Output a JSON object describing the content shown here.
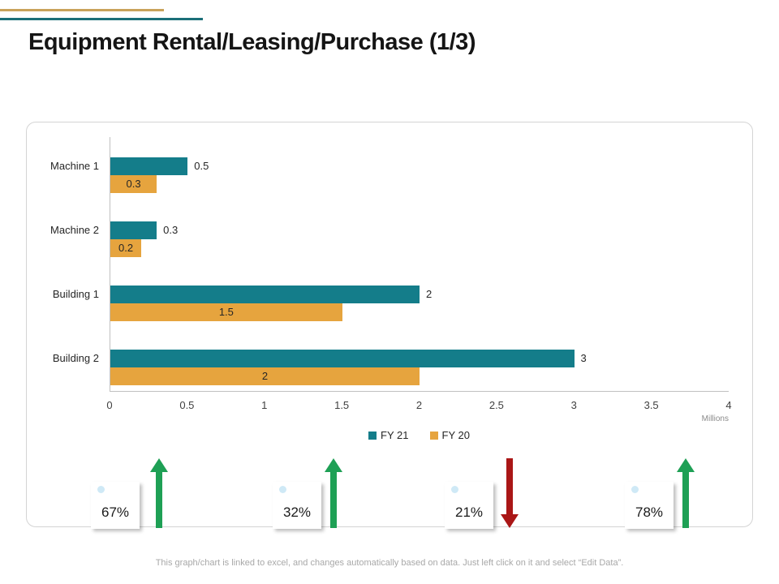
{
  "page": {
    "title": "Equipment Rental/Leasing/Purchase (1/3)",
    "footer": "This graph/chart is linked to excel, and changes automatically based on data. Just left click on it and select “Edit Data”."
  },
  "chart_data": {
    "type": "bar",
    "orientation": "horizontal",
    "title": "",
    "categories": [
      "Machine 1",
      "Machine 2",
      "Building 1",
      "Building 2"
    ],
    "series": [
      {
        "name": "FY 21",
        "color": "#147d8a",
        "values": [
          0.5,
          0.3,
          2,
          3
        ]
      },
      {
        "name": "FY 20",
        "color": "#e6a43e",
        "values": [
          0.3,
          0.2,
          1.5,
          2
        ]
      }
    ],
    "xlim": [
      0,
      4
    ],
    "xticks": [
      0,
      0.5,
      1,
      1.5,
      2,
      2.5,
      3,
      3.5,
      4
    ],
    "units_label": "Millions",
    "legend_position": "bottom-center",
    "grid": false,
    "value_labels": {
      "FY 21": "outside-right",
      "FY 20": "inside-center"
    }
  },
  "stats": [
    {
      "value": "67%",
      "direction": "up"
    },
    {
      "value": "32%",
      "direction": "up"
    },
    {
      "value": "21%",
      "direction": "down"
    },
    {
      "value": "78%",
      "direction": "up"
    }
  ],
  "colors": {
    "teal": "#147d8a",
    "orange": "#e6a43e",
    "green_up": "#1ea055",
    "red_down": "#aa1616",
    "gold_accent_line": "#c9a35b",
    "teal_accent_line": "#1b6f79"
  }
}
